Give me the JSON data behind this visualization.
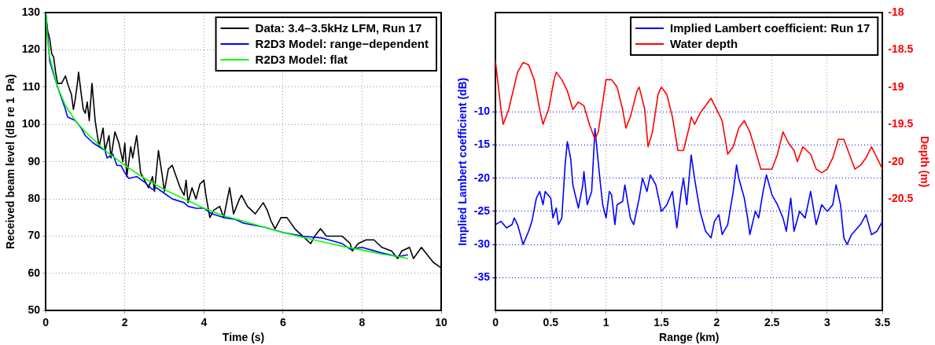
{
  "chart_data": [
    {
      "type": "line",
      "xlabel": "Time (s)",
      "ylabel": "Received beam level (dB re 1  Pa)",
      "xlim": [
        0,
        10
      ],
      "ylim": [
        50,
        130
      ],
      "xticks": [
        0,
        2,
        4,
        6,
        8,
        10
      ],
      "yticks": [
        50,
        60,
        70,
        80,
        90,
        100,
        110,
        120,
        130
      ],
      "grid": true,
      "legend": "top right",
      "line_style": "solid",
      "series": [
        {
          "name": "Data: 3.4–3.5kHz LFM, Run 17",
          "color": "#000000",
          "x": [
            0,
            0.05,
            0.1,
            0.15,
            0.2,
            0.25,
            0.3,
            0.4,
            0.5,
            0.55,
            0.65,
            0.7,
            0.75,
            0.8,
            0.83,
            0.9,
            0.95,
            1.0,
            1.05,
            1.1,
            1.17,
            1.25,
            1.35,
            1.45,
            1.5,
            1.6,
            1.65,
            1.75,
            1.85,
            1.95,
            2.0,
            2.05,
            2.15,
            2.2,
            2.3,
            2.4,
            2.5,
            2.6,
            2.7,
            2.75,
            2.85,
            2.95,
            3.0,
            3.1,
            3.2,
            3.3,
            3.4,
            3.5,
            3.55,
            3.6,
            3.7,
            3.8,
            3.9,
            4.0,
            4.05,
            4.15,
            4.25,
            4.4,
            4.5,
            4.65,
            4.75,
            4.9,
            4.95,
            5.1,
            5.3,
            5.5,
            5.6,
            5.7,
            5.8,
            5.95,
            6.1,
            6.3,
            6.5,
            6.7,
            6.8,
            6.95,
            7.1,
            7.3,
            7.5,
            7.7,
            7.75,
            7.9,
            8.1,
            8.3,
            8.5,
            8.75,
            8.9,
            9.0,
            9.2,
            9.3,
            9.5,
            9.65,
            9.8,
            10.0
          ],
          "values": [
            130,
            125,
            123,
            119,
            118,
            114,
            111,
            111,
            113,
            111,
            108,
            104,
            107,
            111,
            114,
            108,
            104,
            103,
            106,
            101,
            111,
            101,
            94,
            99,
            93,
            97,
            91,
            98,
            95,
            90,
            95,
            86,
            94,
            91,
            97,
            87,
            85,
            83,
            86,
            82,
            93,
            86,
            82,
            88,
            89,
            86,
            83,
            81,
            85,
            79,
            83,
            80,
            84,
            85,
            81,
            75,
            77,
            78,
            75,
            83,
            76,
            80,
            81,
            78,
            76,
            79,
            77,
            74,
            72,
            75,
            75,
            72,
            70,
            68,
            70,
            72,
            70,
            70,
            70,
            68,
            66,
            68,
            69,
            69,
            67,
            66,
            64,
            66,
            67,
            64,
            67,
            65,
            63,
            61.5
          ]
        },
        {
          "name": "R2D3 Model: range−dependent",
          "color": "#0000ff",
          "x": [
            0,
            0.1,
            0.3,
            0.5,
            0.55,
            0.75,
            0.9,
            1,
            1.2,
            1.5,
            1.55,
            1.7,
            1.8,
            1.9,
            2.0,
            2.1,
            2.3,
            2.5,
            2.7,
            2.8,
            3.0,
            3.2,
            3.5,
            3.6,
            3.8,
            4.0,
            4.2,
            4.5,
            4.8,
            5.0,
            5.5,
            6,
            6.5,
            7,
            7.5,
            7.7,
            8,
            8.5,
            8.9,
            9.15
          ],
          "values": [
            130,
            117,
            110,
            104,
            102,
            101,
            99,
            97,
            95,
            93,
            91,
            92,
            89,
            89,
            87,
            85.5,
            86,
            84.5,
            82.5,
            83,
            81.5,
            80,
            79,
            78,
            77.5,
            77.5,
            76,
            75,
            74.5,
            73.5,
            72.5,
            71,
            70,
            69.5,
            68,
            66.5,
            67,
            65.5,
            64.5,
            65
          ]
        },
        {
          "name": "R2D3 Model: flat",
          "color": "#00ff00",
          "x": [
            0,
            0.05,
            0.1,
            0.2,
            0.3,
            0.5,
            0.75,
            1,
            1.25,
            1.5,
            2,
            2.5,
            3,
            3.5,
            4,
            4.5,
            5,
            5.5,
            6,
            6.5,
            7,
            7.5,
            8,
            8.5,
            9,
            9.15
          ],
          "values": [
            130,
            122,
            118,
            114,
            110,
            105,
            101,
            98,
            95.5,
            93,
            89,
            85.5,
            82.5,
            80,
            77.5,
            75.5,
            74,
            72.5,
            71,
            69.7,
            68.5,
            67.3,
            66.3,
            65.2,
            64.4,
            64
          ]
        }
      ]
    },
    {
      "type": "line",
      "xlabel": "Range (km)",
      "ylabel": "Implied Lambert coefficient (dB)",
      "y2label": "Depth (m)",
      "xlim": [
        0,
        3.5
      ],
      "ylim": [
        -40,
        5
      ],
      "y2lim": [
        -22,
        -18
      ],
      "xticks": [
        0,
        0.5,
        1,
        1.5,
        2,
        2.5,
        3,
        3.5
      ],
      "yticks": [
        -35,
        -30,
        -25,
        -20,
        -15,
        -10
      ],
      "y2ticks": [
        -20.5,
        -20,
        -19.5,
        -19,
        -18.5,
        -18
      ],
      "grid": true,
      "legend": "top right",
      "line_style": "solid",
      "series": [
        {
          "name": "Implied Lambert coefficient: Run 17",
          "color": "#0000ff",
          "x": [
            0,
            0.05,
            0.1,
            0.15,
            0.17,
            0.2,
            0.25,
            0.3,
            0.33,
            0.37,
            0.4,
            0.43,
            0.45,
            0.5,
            0.52,
            0.55,
            0.57,
            0.6,
            0.63,
            0.65,
            0.68,
            0.7,
            0.75,
            0.79,
            0.8,
            0.83,
            0.87,
            0.9,
            0.92,
            0.95,
            0.97,
            1.0,
            1.03,
            1.05,
            1.08,
            1.1,
            1.15,
            1.17,
            1.22,
            1.25,
            1.3,
            1.33,
            1.37,
            1.4,
            1.45,
            1.5,
            1.55,
            1.6,
            1.64,
            1.68,
            1.7,
            1.73,
            1.77,
            1.8,
            1.85,
            1.9,
            1.95,
            1.98,
            2.02,
            2.05,
            2.1,
            2.15,
            2.18,
            2.2,
            2.25,
            2.28,
            2.3,
            2.35,
            2.38,
            2.42,
            2.45,
            2.5,
            2.55,
            2.6,
            2.63,
            2.67,
            2.7,
            2.75,
            2.8,
            2.85,
            2.9,
            2.95,
            3.0,
            3.05,
            3.08,
            3.12,
            3.15,
            3.18,
            3.22,
            3.3,
            3.35,
            3.4,
            3.45,
            3.5
          ],
          "values": [
            -27,
            -26.5,
            -27.5,
            -27,
            -26,
            -27,
            -30,
            -28,
            -26.5,
            -23,
            -22,
            -24,
            -22,
            -23,
            -26,
            -24.5,
            -27,
            -26,
            -18,
            -14.5,
            -17,
            -21,
            -24.5,
            -21,
            -19,
            -24,
            -22,
            -12.5,
            -16,
            -21,
            -24,
            -26,
            -22,
            -22.5,
            -27,
            -24,
            -23.5,
            -21,
            -26,
            -27,
            -23,
            -20,
            -22,
            -19.5,
            -21,
            -25,
            -24,
            -22,
            -27.5,
            -22,
            -20,
            -24,
            -16.5,
            -20,
            -25,
            -28,
            -29,
            -26.5,
            -25.5,
            -28.5,
            -27,
            -22,
            -18,
            -20,
            -23,
            -26,
            -28.5,
            -25,
            -26,
            -22,
            -19.5,
            -22.5,
            -24,
            -26,
            -28,
            -23,
            -28,
            -25,
            -26,
            -22,
            -27,
            -24,
            -25,
            -24,
            -21,
            -24,
            -29,
            -30,
            -28.5,
            -27,
            -25.5,
            -28.5,
            -28,
            -26.5
          ]
        },
        {
          "name": "Water depth",
          "color": "#ff0000",
          "axis": "y2",
          "x": [
            0,
            0.05,
            0.07,
            0.12,
            0.2,
            0.25,
            0.3,
            0.35,
            0.4,
            0.43,
            0.48,
            0.53,
            0.55,
            0.6,
            0.65,
            0.7,
            0.75,
            0.8,
            0.85,
            0.9,
            0.93,
            0.97,
            1.0,
            1.05,
            1.1,
            1.15,
            1.18,
            1.22,
            1.28,
            1.3,
            1.35,
            1.38,
            1.42,
            1.47,
            1.5,
            1.55,
            1.6,
            1.65,
            1.7,
            1.75,
            1.77,
            1.8,
            1.85,
            1.9,
            1.95,
            2.0,
            2.05,
            2.1,
            2.15,
            2.2,
            2.25,
            2.3,
            2.35,
            2.4,
            2.45,
            2.5,
            2.55,
            2.6,
            2.65,
            2.7,
            2.73,
            2.78,
            2.85,
            2.9,
            2.95,
            3.0,
            3.05,
            3.1,
            3.15,
            3.2,
            3.25,
            3.3,
            3.35,
            3.4,
            3.45,
            3.5
          ],
          "values": [
            -18.65,
            -19.3,
            -19.5,
            -19.3,
            -18.8,
            -18.67,
            -18.7,
            -18.9,
            -19.3,
            -19.5,
            -19.3,
            -18.9,
            -18.8,
            -18.9,
            -19.05,
            -19.3,
            -19.2,
            -19.25,
            -19.5,
            -19.7,
            -19.6,
            -19.2,
            -18.9,
            -18.9,
            -19.0,
            -19.3,
            -19.55,
            -19.4,
            -19.05,
            -19.0,
            -19.3,
            -19.8,
            -19.6,
            -19.1,
            -19.0,
            -19.1,
            -19.4,
            -19.85,
            -19.85,
            -19.55,
            -19.4,
            -19.5,
            -19.35,
            -19.25,
            -19.15,
            -19.3,
            -19.45,
            -19.9,
            -19.8,
            -19.55,
            -19.45,
            -19.6,
            -19.85,
            -20.1,
            -20.1,
            -20.1,
            -19.9,
            -19.6,
            -19.75,
            -19.85,
            -20.0,
            -19.8,
            -19.9,
            -20.1,
            -20.15,
            -20.1,
            -19.95,
            -19.7,
            -19.7,
            -19.9,
            -20.1,
            -20.05,
            -19.95,
            -19.8,
            -19.95,
            -20.1
          ]
        }
      ]
    }
  ]
}
